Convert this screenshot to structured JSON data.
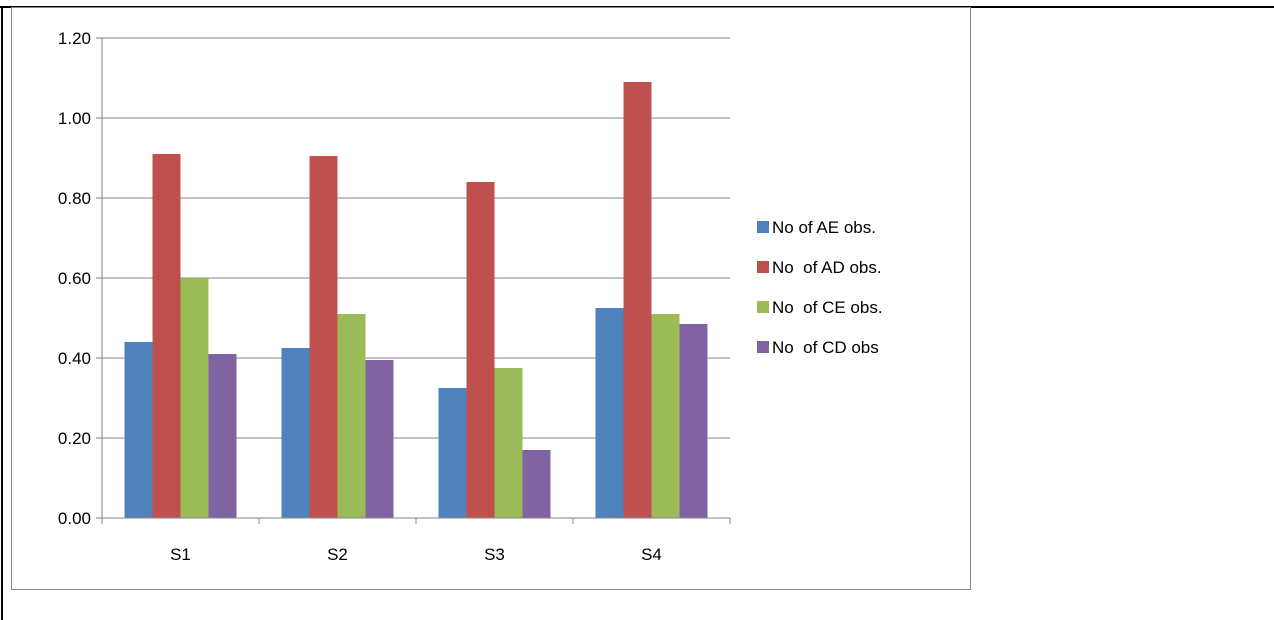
{
  "chart_data": {
    "type": "bar",
    "title": "",
    "xlabel": "",
    "ylabel": "",
    "categories": [
      "S1",
      "S2",
      "S3",
      "S4"
    ],
    "ylim": [
      0,
      1.2
    ],
    "yticks": [
      "0.00",
      "0.20",
      "0.40",
      "0.60",
      "0.80",
      "1.00",
      "1.20"
    ],
    "grid": true,
    "legend_position": "right",
    "series": [
      {
        "name": "No of AE obs.",
        "color": "#4F81BD",
        "values": [
          0.44,
          0.425,
          0.325,
          0.525
        ]
      },
      {
        "name": "No  of AD obs.",
        "color": "#C0504D",
        "values": [
          0.91,
          0.905,
          0.84,
          1.09
        ]
      },
      {
        "name": "No  of CE obs.",
        "color": "#9BBB59",
        "values": [
          0.6,
          0.51,
          0.375,
          0.51
        ]
      },
      {
        "name": "No  of CD obs",
        "color": "#8064A2",
        "values": [
          0.41,
          0.395,
          0.17,
          0.485
        ]
      }
    ]
  }
}
